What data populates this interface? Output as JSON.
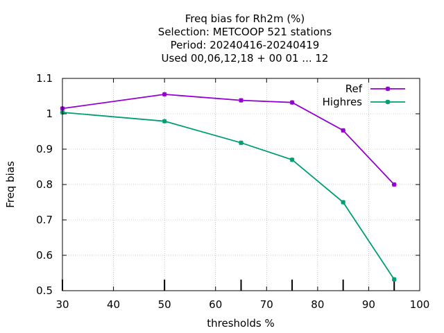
{
  "chart_data": {
    "type": "line",
    "title_lines": [
      "Freq bias  for Rh2m (%)",
      "Selection: METCOOP    521 stations",
      "Period: 20240416-20240419",
      "Used  00,06,12,18 + 00 01 ... 12"
    ],
    "xlabel": "thresholds %",
    "ylabel": "Freq bias",
    "xlim": [
      30,
      100
    ],
    "ylim": [
      0.5,
      1.1
    ],
    "xticks": [
      30,
      40,
      50,
      60,
      70,
      80,
      90,
      100
    ],
    "yticks": [
      0.5,
      0.6,
      0.7,
      0.8,
      0.9,
      1.0,
      1.1
    ],
    "ytick_labels": [
      "0.5",
      "0.6",
      "0.7",
      "0.8",
      "0.9",
      "1",
      "1.1"
    ],
    "grid": true,
    "legend_position": "top-right",
    "observation_ticks": [
      30,
      50,
      65,
      75,
      85,
      95
    ],
    "series": [
      {
        "name": "Ref",
        "color": "#9400d3",
        "x": [
          30,
          50,
          65,
          75,
          85,
          95
        ],
        "y": [
          1.015,
          1.055,
          1.038,
          1.032,
          0.953,
          0.8
        ]
      },
      {
        "name": "Highres",
        "color": "#009e73",
        "x": [
          30,
          50,
          65,
          75,
          85,
          95
        ],
        "y": [
          1.004,
          0.979,
          0.918,
          0.87,
          0.75,
          0.532
        ]
      }
    ]
  }
}
